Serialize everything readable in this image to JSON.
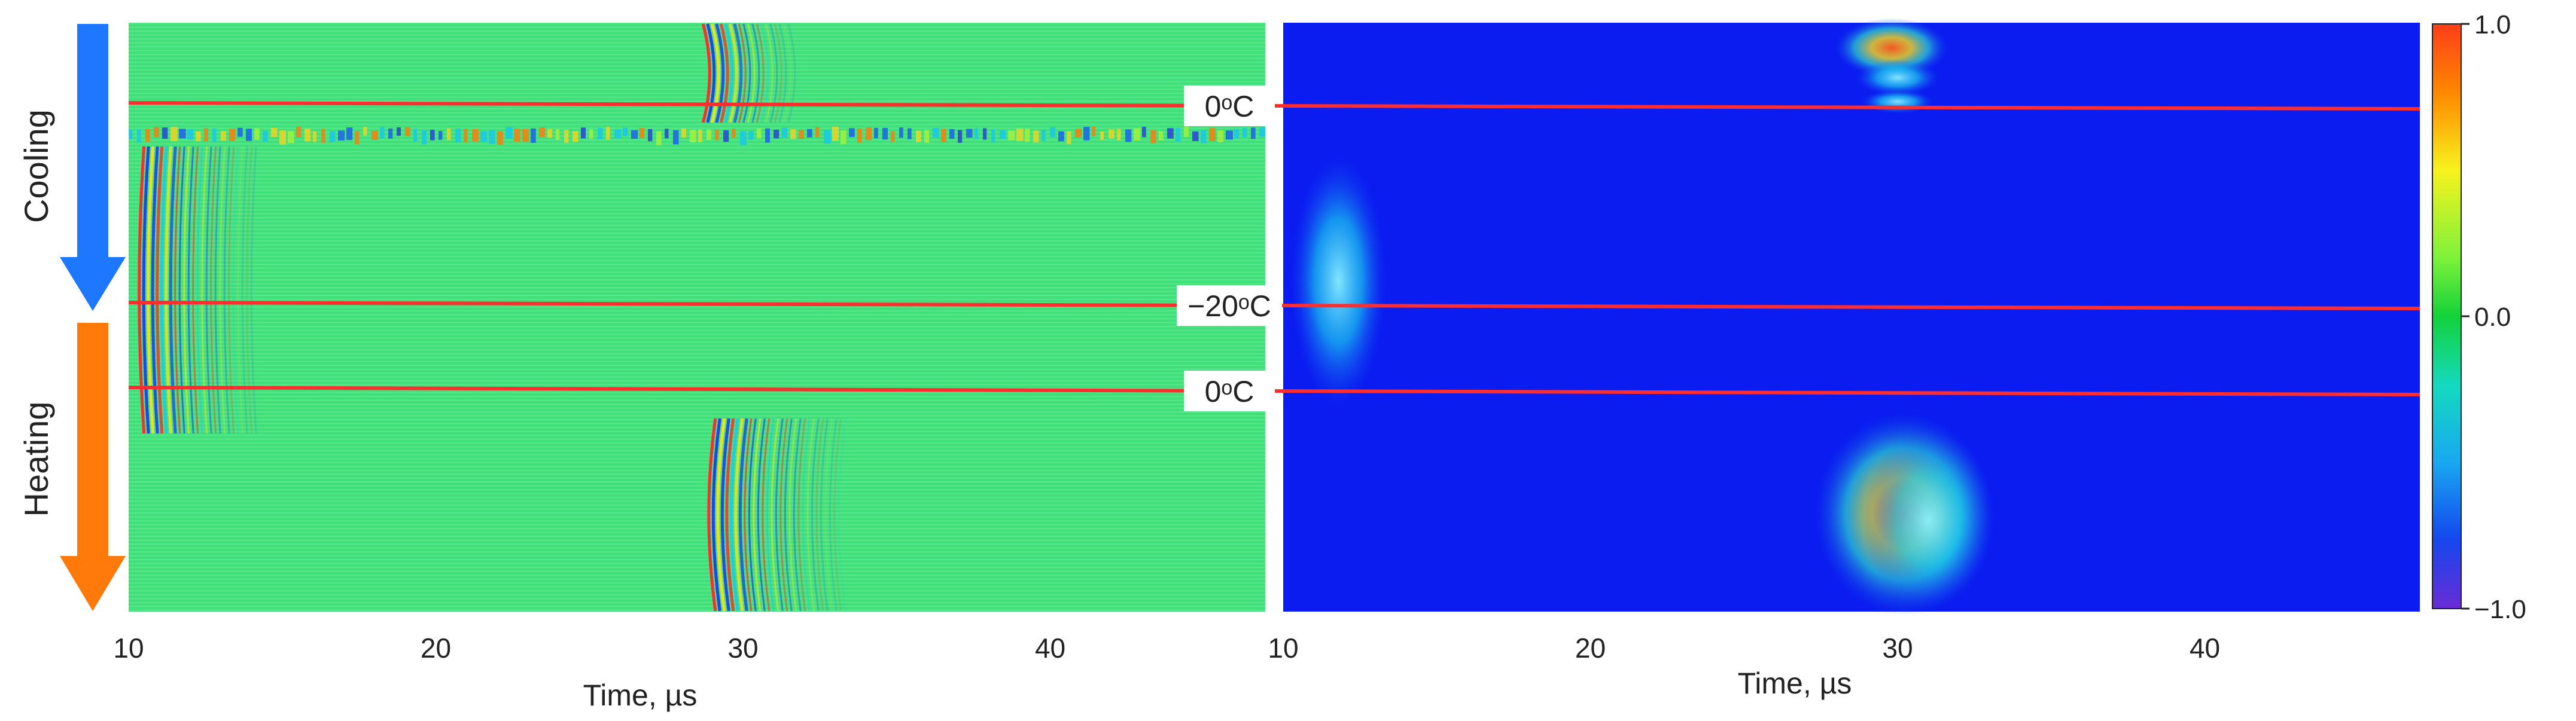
{
  "chart_data": [
    {
      "type": "heatmap",
      "panel": "left",
      "style": "raw waveform (green background, red/blue oscillating fringes)",
      "xlabel": "Time, µs",
      "xlim": [
        10,
        47
      ],
      "xticks": [
        "10",
        "20",
        "30",
        "40"
      ],
      "grid": false,
      "arrivals": [
        {
          "rows": "top (cooling start)",
          "time_us": 29.5
        },
        {
          "rows": "cooling/heating near −20°C",
          "time_us": 11.3
        },
        {
          "rows": "bottom (heating end)",
          "time_us": 30.0
        }
      ],
      "markers": [
        {
          "label": "0ᵒC"
        },
        {
          "label": "−20ᵒC"
        },
        {
          "label": "0ᵒC"
        }
      ]
    },
    {
      "type": "heatmap",
      "panel": "right",
      "style": "envelope (blue background with bright arrival patches)",
      "xlabel": "Time, µs",
      "xlim": [
        10,
        47
      ],
      "xticks": [
        "10",
        "20",
        "30",
        "40"
      ],
      "grid": false
    }
  ],
  "colorbar": {
    "ticks": [
      "1.0",
      "0.0",
      "−1.0"
    ],
    "range": [
      -1.0,
      1.0
    ],
    "colormap": "jet"
  },
  "arrows": {
    "cooling": {
      "label": "Cooling",
      "color": "#1e78ff"
    },
    "heating": {
      "label": "Heating",
      "color": "#ff7a0a"
    }
  },
  "colors": {
    "wave_bg": "#3fe07a",
    "envelope_bg": "#0a1cf0",
    "marker_line": "#ff2d2d"
  }
}
